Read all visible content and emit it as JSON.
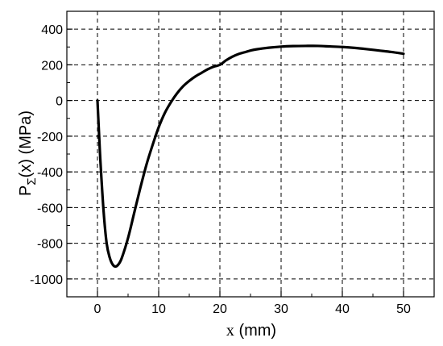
{
  "chart_data": {
    "type": "line",
    "title": "",
    "xlabel": {
      "main": "x",
      "unit": " (mm)"
    },
    "ylabel": {
      "prefix": "P",
      "subscript": "Σ",
      "suffix": "(x) (MPa)"
    },
    "xlim": [
      -5,
      55
    ],
    "ylim": [
      -1100,
      500
    ],
    "x_ticks": [
      0,
      10,
      20,
      30,
      40,
      50
    ],
    "x_tick_labels": [
      "0",
      "10",
      "20",
      "30",
      "40",
      "50"
    ],
    "y_ticks": [
      -1000,
      -800,
      -600,
      -400,
      -200,
      0,
      200,
      400
    ],
    "y_tick_labels": [
      "-1000",
      "-800",
      "-600",
      "-400",
      "-200",
      "0",
      "200",
      "400"
    ],
    "grid": true,
    "line_color": "#000000",
    "series": [
      {
        "x": [
          0,
          0.25,
          0.5,
          1.0,
          1.5,
          2.0,
          2.5,
          3.0,
          3.5,
          4.0,
          5.0,
          6.0,
          7.0,
          8.0,
          9.0,
          10.0,
          11.0,
          12.0,
          13.0,
          14.0,
          15.0,
          16.0,
          17.0,
          18.0,
          19.0,
          20.0,
          21.0,
          22.0,
          23.0,
          24.0,
          25.0,
          26.0,
          28.0,
          30.0,
          32.0,
          34.0,
          36.0,
          38.0,
          40.0,
          42.0,
          44.0,
          46.0,
          48.0,
          50.0
        ],
        "y": [
          0,
          -180,
          -350,
          -620,
          -800,
          -880,
          -920,
          -930,
          -915,
          -880,
          -770,
          -630,
          -490,
          -360,
          -250,
          -150,
          -70,
          -10,
          40,
          80,
          110,
          135,
          155,
          175,
          190,
          200,
          225,
          245,
          260,
          270,
          280,
          287,
          296,
          302,
          305,
          306,
          306,
          303,
          300,
          295,
          288,
          280,
          272,
          262
        ]
      }
    ]
  }
}
